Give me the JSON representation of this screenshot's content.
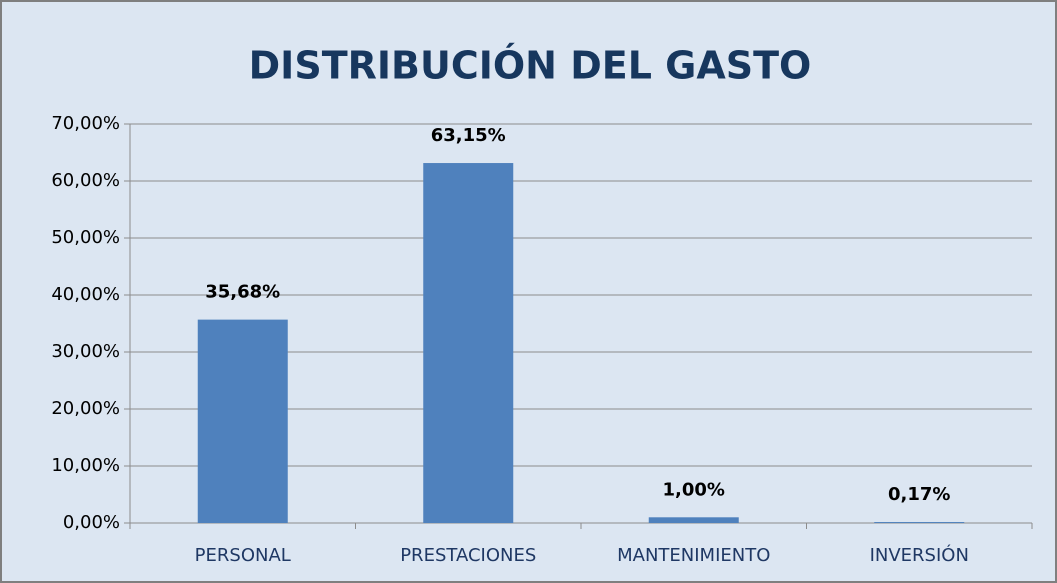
{
  "chart_data": {
    "type": "bar",
    "title": "DISTRIBUCIÓN DEL GASTO",
    "categories": [
      "PERSONAL",
      "PRESTACIONES",
      "MANTENIMIENTO",
      "INVERSIÓN"
    ],
    "values": [
      35.68,
      63.15,
      1.0,
      0.17
    ],
    "value_labels": [
      "35,68%",
      "63,15%",
      "1,00%",
      "0,17%"
    ],
    "color": "#4f81bd",
    "ylim": [
      0,
      70
    ],
    "yticks": [
      {
        "value": 0,
        "label": "0,00%"
      },
      {
        "value": 10,
        "label": "10,00%"
      },
      {
        "value": 20,
        "label": "20,00%"
      },
      {
        "value": 30,
        "label": "30,00%"
      },
      {
        "value": 40,
        "label": "40,00%"
      },
      {
        "value": 50,
        "label": "50,00%"
      },
      {
        "value": 60,
        "label": "60,00%"
      },
      {
        "value": 70,
        "label": "70,00%"
      }
    ],
    "grid": true
  }
}
